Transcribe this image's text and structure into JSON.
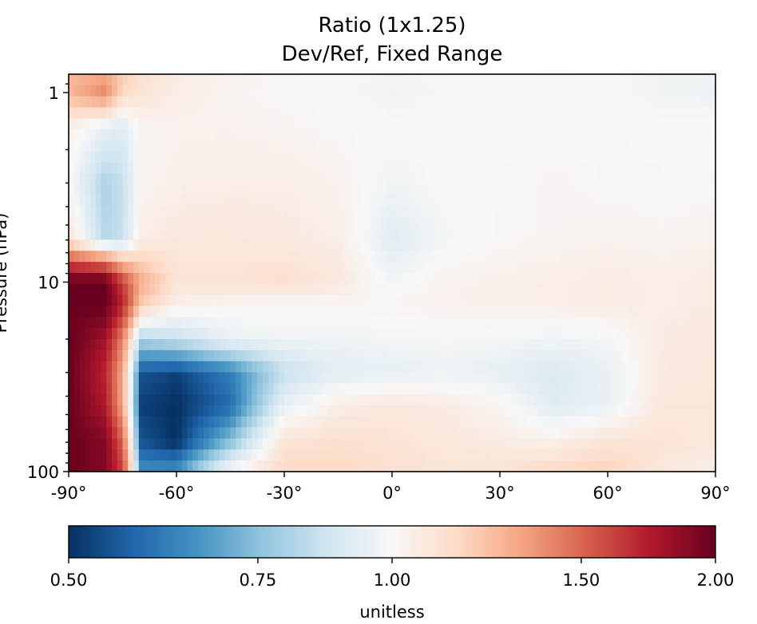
{
  "chart_data": {
    "type": "heatmap",
    "title": "Ratio (1x1.25)",
    "subtitle": "Dev/Ref, Fixed Range",
    "xlabel": "",
    "ylabel": "Pressure (hPa)",
    "x_ticks": [
      {
        "value": -90,
        "label": "-90°"
      },
      {
        "value": -60,
        "label": "-60°"
      },
      {
        "value": -30,
        "label": "-30°"
      },
      {
        "value": 0,
        "label": "0°"
      },
      {
        "value": 30,
        "label": "30°"
      },
      {
        "value": 60,
        "label": "60°"
      },
      {
        "value": 90,
        "label": "90°"
      }
    ],
    "y_ticks": [
      {
        "value": 1,
        "label": "1"
      },
      {
        "value": 10,
        "label": "10"
      },
      {
        "value": 100,
        "label": "100"
      }
    ],
    "xlim": [
      -90,
      90
    ],
    "ylim": [
      100,
      0.8
    ],
    "y_scale": "log",
    "grid": false,
    "colormap": "RdBu_r",
    "colorbar": {
      "orientation": "horizontal",
      "placement": "bottom",
      "label": "unitless",
      "scale": "log",
      "range": [
        0.5,
        2.0
      ],
      "ticks": [
        {
          "value": 0.5,
          "label": "0.50"
        },
        {
          "value": 0.75,
          "label": "0.75"
        },
        {
          "value": 1.0,
          "label": "1.00"
        },
        {
          "value": 1.5,
          "label": "1.50"
        },
        {
          "value": 2.0,
          "label": "2.00"
        }
      ]
    },
    "colors": {
      "low": "#053061",
      "mid": "#f7f7f7",
      "high": "#67001f"
    },
    "latitudes": [
      -90,
      -80,
      -75,
      -70,
      -60,
      -45,
      -30,
      -15,
      0,
      15,
      30,
      45,
      60,
      75,
      90
    ],
    "pressure_levels": [
      0.8,
      1,
      1.5,
      3,
      6,
      10,
      13,
      20,
      30,
      45,
      70,
      100
    ],
    "values": [
      [
        1.25,
        1.3,
        1.2,
        1.12,
        1.06,
        1.03,
        1.01,
        1.0,
        0.98,
        0.99,
        1.0,
        1.01,
        1.0,
        0.97,
        0.97
      ],
      [
        1.25,
        1.4,
        1.15,
        1.1,
        1.05,
        1.02,
        1.01,
        0.99,
        0.97,
        0.99,
        1.0,
        1.01,
        1.0,
        0.97,
        0.96
      ],
      [
        1.05,
        0.95,
        0.92,
        1.02,
        1.03,
        1.03,
        1.02,
        1.01,
        1.0,
        1.0,
        1.0,
        1.01,
        1.01,
        1.0,
        1.0
      ],
      [
        1.0,
        0.8,
        0.85,
        1.02,
        1.04,
        1.05,
        1.05,
        1.03,
        0.97,
        1.0,
        1.01,
        1.02,
        1.01,
        1.01,
        1.01
      ],
      [
        1.1,
        0.82,
        0.85,
        1.05,
        1.08,
        1.08,
        1.07,
        1.05,
        0.92,
        0.98,
        1.01,
        1.02,
        1.03,
        1.02,
        1.03
      ],
      [
        2.0,
        2.0,
        1.6,
        1.3,
        1.1,
        1.1,
        1.12,
        1.08,
        0.98,
        1.03,
        1.04,
        1.05,
        1.06,
        1.05,
        1.06
      ],
      [
        2.0,
        2.0,
        1.7,
        1.2,
        1.04,
        1.02,
        1.01,
        1.01,
        1.02,
        1.03,
        1.04,
        1.05,
        1.06,
        1.05,
        1.06
      ],
      [
        2.0,
        1.8,
        1.4,
        0.8,
        0.85,
        0.95,
        0.97,
        0.97,
        0.98,
        0.99,
        0.98,
        0.97,
        0.98,
        1.06,
        1.08
      ],
      [
        2.0,
        1.7,
        1.3,
        0.55,
        0.52,
        0.62,
        0.85,
        0.93,
        0.94,
        0.96,
        0.94,
        0.9,
        0.95,
        1.07,
        1.08
      ],
      [
        2.0,
        1.75,
        1.3,
        0.52,
        0.5,
        0.58,
        0.95,
        1.05,
        1.08,
        1.06,
        1.02,
        0.92,
        0.95,
        1.08,
        1.08
      ],
      [
        2.0,
        1.9,
        1.5,
        0.55,
        0.5,
        0.75,
        1.1,
        1.12,
        1.1,
        1.08,
        1.06,
        1.04,
        1.1,
        1.1,
        1.08
      ],
      [
        2.0,
        1.9,
        1.6,
        0.65,
        0.65,
        1.0,
        1.15,
        1.15,
        1.12,
        1.1,
        1.1,
        1.15,
        1.18,
        1.08,
        1.04
      ]
    ]
  }
}
